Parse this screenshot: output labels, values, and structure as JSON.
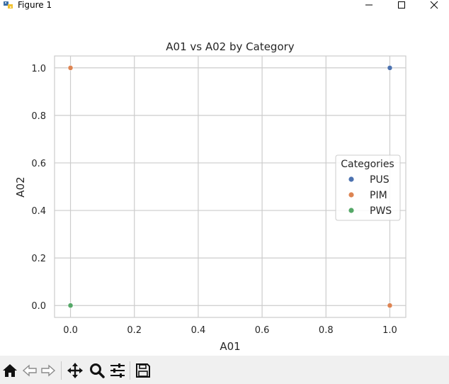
{
  "window": {
    "title": "Figure 1",
    "icon": "python-figure-icon",
    "controls": [
      "minimize-icon",
      "maximize-icon",
      "close-icon"
    ]
  },
  "chart_data": {
    "type": "scatter",
    "title": "A01 vs A02 by Category",
    "xlabel": "A01",
    "ylabel": "A02",
    "xlim": [
      -0.05,
      1.05
    ],
    "ylim": [
      -0.05,
      1.05
    ],
    "xticks": [
      "0.0",
      "0.2",
      "0.4",
      "0.6",
      "0.8",
      "1.0"
    ],
    "yticks": [
      "0.0",
      "0.2",
      "0.4",
      "0.6",
      "0.8",
      "1.0"
    ],
    "grid": true,
    "legend": {
      "title": "Categories",
      "placement": "center-right"
    },
    "series": [
      {
        "name": "PUS",
        "color": "#4c72b0",
        "points": [
          [
            1.0,
            1.0
          ]
        ]
      },
      {
        "name": "PIM",
        "color": "#dd8452",
        "points": [
          [
            0.0,
            1.0
          ],
          [
            1.0,
            0.0
          ]
        ]
      },
      {
        "name": "PWS",
        "color": "#55a868",
        "points": [
          [
            0.0,
            0.0
          ]
        ]
      }
    ]
  },
  "toolbar": {
    "tools": [
      "home-icon",
      "back-icon",
      "forward-icon",
      "pan-icon",
      "zoom-icon",
      "configure-subplots-icon",
      "save-icon"
    ]
  }
}
